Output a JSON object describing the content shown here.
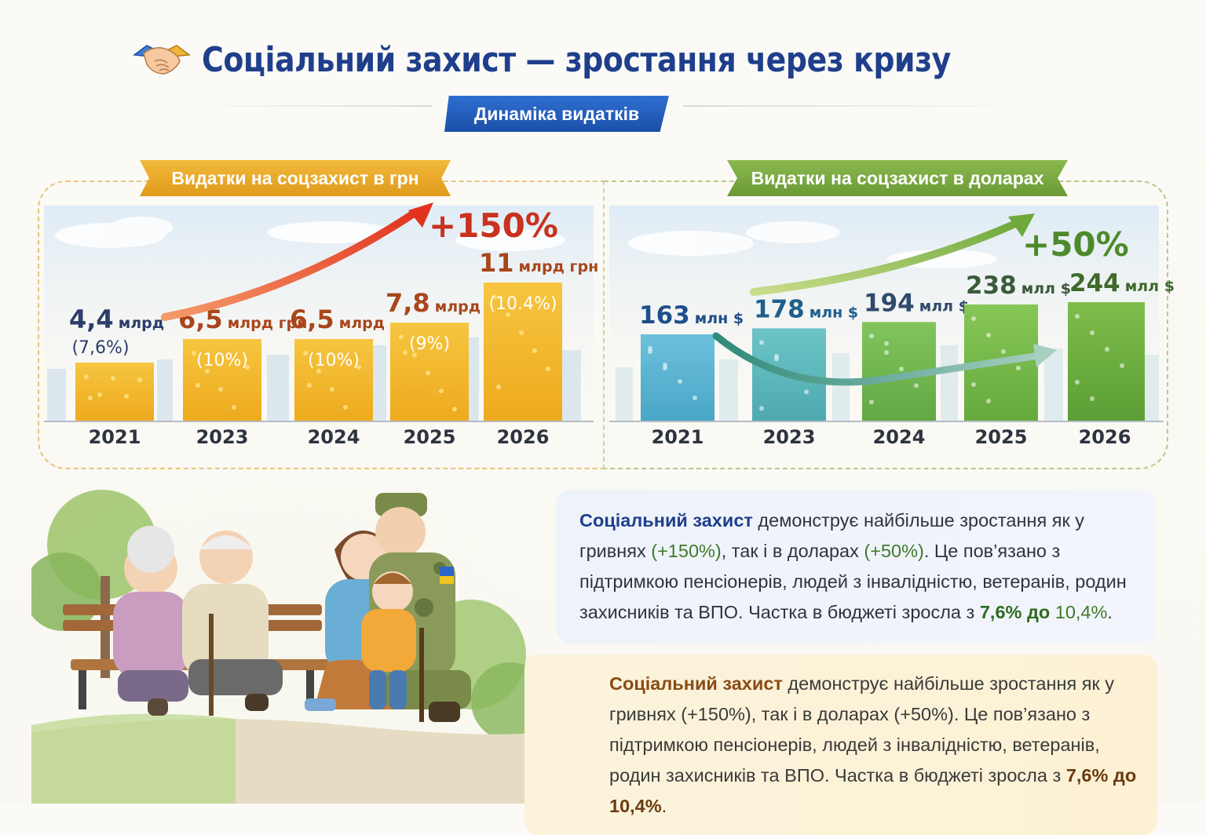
{
  "header": {
    "title": "Соціальний захист — зростання через кризу",
    "subtitle": "Динаміка видатків"
  },
  "colors": {
    "title": "#1f3f8c",
    "grn_bar": "#f2b830",
    "usd_bar_start": "#5fb6d6",
    "usd_bar_end": "#6fb04a",
    "grn_arrow": "#e2412c",
    "usd_arrow": "#79ad3c",
    "growth_grn": "#c8321e",
    "growth_usd": "#4d8a2a"
  },
  "chart_data": [
    {
      "type": "bar",
      "title": "Видатки на соцзахист в грн",
      "categories": [
        "2021",
        "2023",
        "2024",
        "2025",
        "2026"
      ],
      "values": [
        4.4,
        6.5,
        6.5,
        7.8,
        11
      ],
      "value_labels": [
        "4,4",
        "6,5",
        "6,5",
        "7,8",
        "11"
      ],
      "unit_labels": [
        "млрд",
        "млрд грн",
        "млрд",
        "млрд",
        "млрд грн"
      ],
      "share_labels": [
        "(7,6%)",
        "(10%)",
        "(10%)",
        "(9%)",
        "(10.4%)"
      ],
      "growth": "+150%",
      "ylim": [
        0,
        12
      ]
    },
    {
      "type": "bar",
      "title": "Видатки на соцзахист в доларах",
      "categories": [
        "2021",
        "2023",
        "2024",
        "2025",
        "2026"
      ],
      "values": [
        163,
        178,
        194,
        238,
        244
      ],
      "value_labels": [
        "163",
        "178",
        "194",
        "238",
        "244"
      ],
      "unit_labels": [
        "млн $",
        "млн $",
        "млл $",
        "млл $",
        "млл $"
      ],
      "growth": "+50%",
      "ylim": [
        0,
        300
      ]
    }
  ],
  "text_blocks": [
    {
      "lead": "Соціальний захист",
      "part1": " демонструє найбільше зростання як у гривнях ",
      "grn": "(+150%)",
      "part2": ", так і в доларах ",
      "usd": "(+50%)",
      "part3": ". Це пов’язано з підтримкою пенсіонерів, людей з інвалідністю, ветеранів, родин захисників та ВПО. Частка в бюджеті зросла з ",
      "from": "7,6%",
      "mid": " до ",
      "to": "10,4%",
      "end": "."
    },
    {
      "lead": "Соціальний захист",
      "part1": " демонструє найбільше зростання як у гривнях ",
      "grn": "(+150%)",
      "part2": ", так і в доларах ",
      "usd": "(+50%)",
      "part3": ". Це пов’язано з підтримкою пенсіонерів, людей з інвалідністю, ветеранів, родин захисників та ВПО. Частка в бюджеті зросла з ",
      "from": "7,6%",
      "mid": " до ",
      "to": "10,4%",
      "end": "."
    }
  ]
}
